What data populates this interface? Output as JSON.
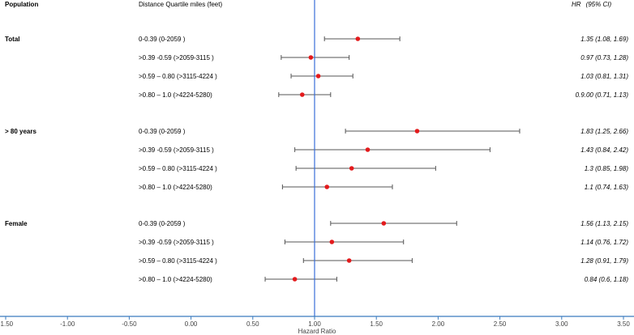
{
  "chart_data": {
    "type": "forest",
    "headers": {
      "population": "Population",
      "distance": "Distance Quartile miles (feet)",
      "hr": "HR",
      "ci": "(95% CI)"
    },
    "xlabel": "Hazard Ratio",
    "xlim": [
      -1.5,
      3.5
    ],
    "xticks": [
      "-1.50",
      "-1.00",
      "-0.50",
      "0.00",
      "0.50",
      "1.00",
      "1.50",
      "2.00",
      "2.50",
      "3.00",
      "3.50"
    ],
    "reference_line": 1.0,
    "colors": {
      "point": "#e31a1c",
      "reference": "#3a6fd8",
      "axis": "#3a7bbf",
      "whisker": "#555555"
    },
    "groups": [
      {
        "name": "Total",
        "rows": [
          {
            "label": "0-0.39 (0-2059 )",
            "hr": 1.35,
            "lo": 1.08,
            "hi": 1.69,
            "text": "1.35 (1.08, 1.69)"
          },
          {
            "label": ">0.39 -0.59 (>2059-3115 )",
            "hr": 0.97,
            "lo": 0.73,
            "hi": 1.28,
            "text": "0.97 (0.73, 1.28)"
          },
          {
            "label": ">0.59 – 0.80 (>3115-4224 )",
            "hr": 1.03,
            "lo": 0.81,
            "hi": 1.31,
            "text": "1.03 (0.81, 1.31)"
          },
          {
            "label": ">0.80 – 1.0 (>4224-5280)",
            "hr": 0.9,
            "lo": 0.71,
            "hi": 1.13,
            "text": "0.9.00 (0.71, 1.13)"
          }
        ]
      },
      {
        "name": "> 80 years",
        "rows": [
          {
            "label": "0-0.39 (0-2059 )",
            "hr": 1.83,
            "lo": 1.25,
            "hi": 2.66,
            "text": "1.83 (1.25, 2.66)"
          },
          {
            "label": ">0.39 -0.59 (>2059-3115 )",
            "hr": 1.43,
            "lo": 0.84,
            "hi": 2.42,
            "text": "1.43 (0.84, 2.42)"
          },
          {
            "label": ">0.59 – 0.80 (>3115-4224 )",
            "hr": 1.3,
            "lo": 0.85,
            "hi": 1.98,
            "text": "1.3 (0.85, 1.98)"
          },
          {
            "label": ">0.80 – 1.0 (>4224-5280)",
            "hr": 1.1,
            "lo": 0.74,
            "hi": 1.63,
            "text": "1.1 (0.74, 1.63)"
          }
        ]
      },
      {
        "name": "Female",
        "rows": [
          {
            "label": "0-0.39 (0-2059 )",
            "hr": 1.56,
            "lo": 1.13,
            "hi": 2.15,
            "text": "1.56 (1.13, 2.15)"
          },
          {
            "label": ">0.39 -0.59 (>2059-3115 )",
            "hr": 1.14,
            "lo": 0.76,
            "hi": 1.72,
            "text": "1.14 (0.76, 1.72)"
          },
          {
            "label": ">0.59 – 0.80 (>3115-4224 )",
            "hr": 1.28,
            "lo": 0.91,
            "hi": 1.79,
            "text": "1.28 (0.91, 1.79)"
          },
          {
            "label": ">0.80 – 1.0 (>4224-5280)",
            "hr": 0.84,
            "lo": 0.6,
            "hi": 1.18,
            "text": "0.84 (0.6, 1.18)"
          }
        ]
      }
    ]
  }
}
